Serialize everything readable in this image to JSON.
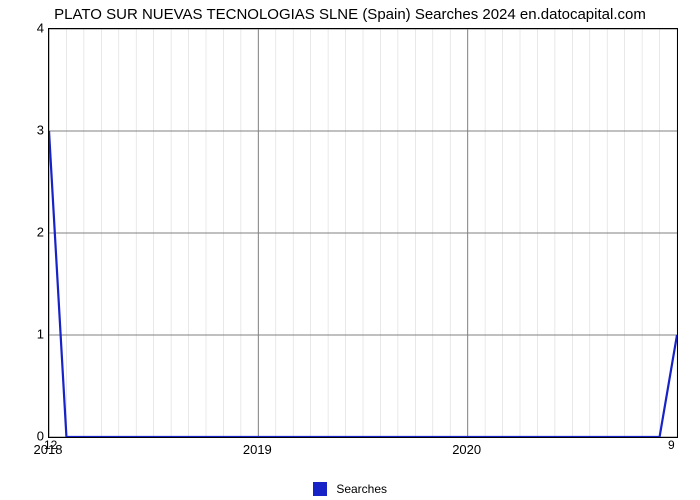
{
  "chart": {
    "type": "line",
    "title": "PLATO SUR NUEVAS TECNOLOGIAS SLNE (Spain) Searches 2024 en.datocapital.com",
    "title_fontsize": 15,
    "background_color": "#ffffff",
    "plot_border_color": "#000000",
    "major_grid_color": "#808080",
    "minor_grid_color": "#d9d9d9",
    "line_color": "#1722c7",
    "line_width": 2.2,
    "x": {
      "min": 2018,
      "max": 2021,
      "major_ticks": [
        2018,
        2019,
        2020
      ],
      "minor_per_major": 12,
      "label_fontsize": 13
    },
    "y": {
      "min": 0,
      "max": 4,
      "major_ticks": [
        0,
        1,
        2,
        3,
        4
      ],
      "label_fontsize": 13
    },
    "series": {
      "name": "Searches",
      "points": [
        [
          2018.0,
          3.0
        ],
        [
          2018.0833,
          0.0
        ],
        [
          2020.9167,
          0.0
        ],
        [
          2021.0,
          1.0
        ]
      ]
    },
    "legend": {
      "label": "Searches",
      "swatch_color": "#1722c7",
      "fontsize": 12
    },
    "endpoint_labels": {
      "start": "12",
      "end": "9"
    }
  }
}
